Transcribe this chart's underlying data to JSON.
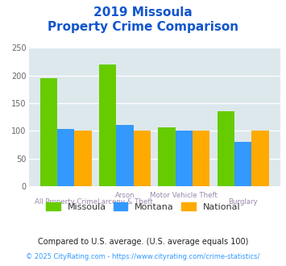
{
  "title_line1": "2019 Missoula",
  "title_line2": "Property Crime Comparison",
  "missoula": [
    195,
    220,
    107,
    135
  ],
  "montana": [
    104,
    110,
    101,
    80
  ],
  "national": [
    100,
    100,
    100,
    100
  ],
  "colors": {
    "missoula": "#66cc00",
    "montana": "#3399ff",
    "national": "#ffaa00"
  },
  "ylim": [
    0,
    250
  ],
  "yticks": [
    0,
    50,
    100,
    150,
    200,
    250
  ],
  "plot_bg": "#dde8ed",
  "title_color": "#1155cc",
  "xlabel_top_color": "#9988aa",
  "xlabel_bot_color": "#9988aa",
  "legend_label_color": "#333333",
  "footnote1": "Compared to U.S. average. (U.S. average equals 100)",
  "footnote2": "© 2025 CityRating.com - https://www.cityrating.com/crime-statistics/",
  "footnote1_color": "#222222",
  "footnote2_color": "#3399ff"
}
